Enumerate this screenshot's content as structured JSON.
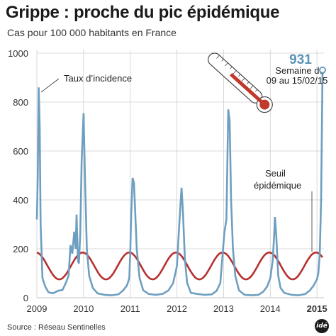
{
  "title": "Grippe : proche du pic épidémique",
  "subtitle": "Cas pour 100 000 habitants en France",
  "source": "Source : Réseau Sentinelles",
  "logo": "idé",
  "colors": {
    "incidence": "#6e9fc0",
    "threshold": "#b5312f",
    "peak_value": "#5a93b8",
    "grid": "#cfcfcf"
  },
  "icon": "thermometer-icon",
  "chart_data": {
    "type": "line",
    "title": "Grippe : proche du pic épidémique",
    "subtitle": "Cas pour 100 000 habitants en France",
    "ylim": [
      0,
      1000
    ],
    "xlim": [
      2009,
      2015.15
    ],
    "y_ticks": [
      "0",
      "200",
      "400",
      "600",
      "800",
      "1000"
    ],
    "x_ticks": [
      "2009",
      "2010",
      "2011",
      "2012",
      "2013",
      "2014",
      "2015"
    ],
    "grid": true,
    "annotations": {
      "incidence_label": "Taux d’incidence",
      "threshold_label_line1": "Seuil",
      "threshold_label_line2": "épidémique",
      "peak_value": "931",
      "peak_caption_line1": "Semaine du",
      "peak_caption_line2": "09 au 15/02/15"
    },
    "series": [
      {
        "name": "Taux d’incidence",
        "points": [
          [
            2009.0,
            320
          ],
          [
            2009.02,
            500
          ],
          [
            2009.04,
            860
          ],
          [
            2009.06,
            700
          ],
          [
            2009.08,
            300
          ],
          [
            2009.12,
            80
          ],
          [
            2009.18,
            45
          ],
          [
            2009.25,
            22
          ],
          [
            2009.35,
            18
          ],
          [
            2009.45,
            28
          ],
          [
            2009.55,
            32
          ],
          [
            2009.62,
            60
          ],
          [
            2009.68,
            90
          ],
          [
            2009.72,
            215
          ],
          [
            2009.76,
            180
          ],
          [
            2009.8,
            270
          ],
          [
            2009.83,
            200
          ],
          [
            2009.85,
            340
          ],
          [
            2009.88,
            150
          ],
          [
            2009.9,
            140
          ],
          [
            2009.93,
            260
          ],
          [
            2009.96,
            560
          ],
          [
            2010.0,
            755
          ],
          [
            2010.03,
            500
          ],
          [
            2010.07,
            200
          ],
          [
            2010.12,
            90
          ],
          [
            2010.2,
            40
          ],
          [
            2010.3,
            18
          ],
          [
            2010.45,
            12
          ],
          [
            2010.6,
            10
          ],
          [
            2010.75,
            14
          ],
          [
            2010.85,
            30
          ],
          [
            2010.93,
            50
          ],
          [
            2010.98,
            80
          ],
          [
            2011.0,
            180
          ],
          [
            2011.02,
            330
          ],
          [
            2011.05,
            490
          ],
          [
            2011.08,
            470
          ],
          [
            2011.1,
            380
          ],
          [
            2011.14,
            200
          ],
          [
            2011.2,
            80
          ],
          [
            2011.28,
            30
          ],
          [
            2011.4,
            15
          ],
          [
            2011.55,
            12
          ],
          [
            2011.7,
            16
          ],
          [
            2011.82,
            30
          ],
          [
            2011.92,
            60
          ],
          [
            2012.0,
            130
          ],
          [
            2012.05,
            300
          ],
          [
            2012.1,
            450
          ],
          [
            2012.13,
            350
          ],
          [
            2012.17,
            160
          ],
          [
            2012.22,
            60
          ],
          [
            2012.3,
            20
          ],
          [
            2012.45,
            15
          ],
          [
            2012.6,
            12
          ],
          [
            2012.75,
            14
          ],
          [
            2012.85,
            28
          ],
          [
            2012.93,
            60
          ],
          [
            2012.98,
            180
          ],
          [
            2013.02,
            270
          ],
          [
            2013.06,
            320
          ],
          [
            2013.1,
            770
          ],
          [
            2013.13,
            720
          ],
          [
            2013.16,
            400
          ],
          [
            2013.2,
            200
          ],
          [
            2013.25,
            90
          ],
          [
            2013.33,
            30
          ],
          [
            2013.45,
            12
          ],
          [
            2013.6,
            10
          ],
          [
            2013.75,
            12
          ],
          [
            2013.85,
            25
          ],
          [
            2013.93,
            45
          ],
          [
            2014.0,
            80
          ],
          [
            2014.05,
            150
          ],
          [
            2014.08,
            240
          ],
          [
            2014.1,
            330
          ],
          [
            2014.13,
            250
          ],
          [
            2014.17,
            90
          ],
          [
            2014.22,
            40
          ],
          [
            2014.3,
            20
          ],
          [
            2014.45,
            12
          ],
          [
            2014.6,
            10
          ],
          [
            2014.75,
            15
          ],
          [
            2014.85,
            30
          ],
          [
            2014.93,
            50
          ],
          [
            2015.0,
            75
          ],
          [
            2015.03,
            100
          ],
          [
            2015.06,
            180
          ],
          [
            2015.09,
            400
          ],
          [
            2015.12,
            931
          ]
        ]
      },
      {
        "name": "Seuil épidémique",
        "center": 130,
        "amplitude": 55,
        "peak_phase": 0.0,
        "x_start": 2009.0,
        "x_end": 2015.12
      }
    ]
  }
}
